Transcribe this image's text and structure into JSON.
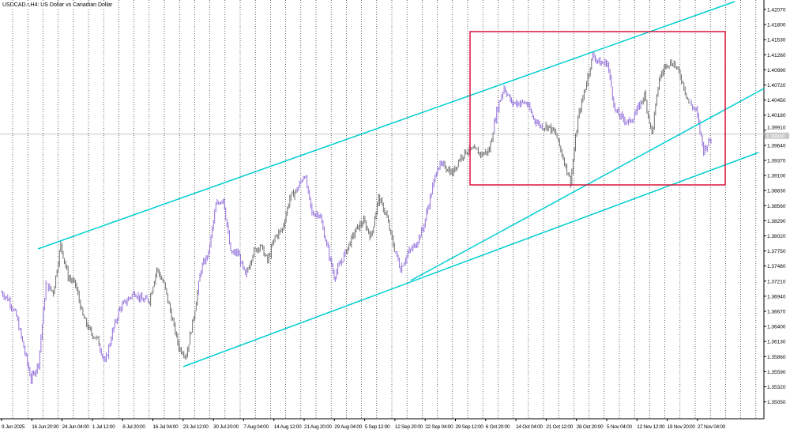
{
  "header": {
    "symbol": "USDCAD.r",
    "timeframe": "H4",
    "description": "US Dollar vs Canadian Dollar",
    "title": "USDCAD.r,H4:  US Dollar vs Canadian Dollar"
  },
  "chart_data": {
    "type": "candlestick",
    "title": "USDCAD.r,H4:  US Dollar vs Canadian Dollar",
    "y_ticks": [
      "1.42070",
      "1.41800",
      "1.41530",
      "1.41260",
      "1.40990",
      "1.40720",
      "1.40450",
      "1.40180",
      "1.39910",
      "1.39640",
      "1.39370",
      "1.39100",
      "1.38830",
      "1.38560",
      "1.38290",
      "1.38020",
      "1.37750",
      "1.37480",
      "1.37210",
      "1.36940",
      "1.36670",
      "1.36400",
      "1.36130",
      "1.35860",
      "1.35590",
      "1.35320",
      "1.35050"
    ],
    "ylim": [
      1.3487,
      1.4223
    ],
    "x_ticks": [
      "9 Jun 2025",
      "16 Jun 20:00",
      "24 Jun 04:00",
      "1 Jul 12:00",
      "8 Jul 20:00",
      "16 Jul 04:00",
      "23 Jul 12:00",
      "30 Jul 20:00",
      "7 Aug 04:00",
      "14 Aug 12:00",
      "21 Aug 20:00",
      "29 Aug 04:00",
      "5 Sep 12:00",
      "12 Sep 20:00",
      "22 Sep 04:00",
      "29 Sep 12:00",
      "6 Oct 20:00",
      "14 Oct 04:00",
      "21 Oct 12:00",
      "28 Oct 20:00",
      "5 Nov 04:00",
      "12 Nov 12:00",
      "19 Nov 20:00",
      "27 Nov 04:00"
    ],
    "current_price": "1.39840",
    "closes": [
      1.3701,
      1.3687,
      1.3658,
      1.3602,
      1.3545,
      1.3574,
      1.3715,
      1.3701,
      1.3786,
      1.3729,
      1.3715,
      1.3658,
      1.363,
      1.3616,
      1.3574,
      1.363,
      1.3672,
      1.3687,
      1.3701,
      1.3687,
      1.3687,
      1.3743,
      1.3715,
      1.3658,
      1.3602,
      1.3588,
      1.3658,
      1.3743,
      1.3771,
      1.3856,
      1.387,
      1.3771,
      1.3771,
      1.3729,
      1.3771,
      1.3786,
      1.3757,
      1.38,
      1.3814,
      1.387,
      1.3885,
      1.3913,
      1.3842,
      1.3842,
      1.3786,
      1.3729,
      1.3757,
      1.3786,
      1.3814,
      1.3828,
      1.38,
      1.387,
      1.3842,
      1.3786,
      1.3743,
      1.3771,
      1.3786,
      1.3814,
      1.387,
      1.3927,
      1.3927,
      1.3913,
      1.3941,
      1.3955,
      1.3955,
      1.3948,
      1.3955,
      1.4026,
      1.4068,
      1.404,
      1.404,
      1.404,
      1.4012,
      1.3998,
      1.3998,
      1.3984,
      1.3941,
      1.3899,
      1.4012,
      1.4068,
      1.4125,
      1.4111,
      1.4111,
      1.4026,
      1.4012,
      1.4005,
      1.4026,
      1.4054,
      1.3984,
      1.4083,
      1.4111,
      1.4111,
      1.4083,
      1.404,
      1.4026,
      1.3955,
      1.3977
    ],
    "trendlines": [
      {
        "from": [
          "16 Jun 20:00",
          1.38
        ],
        "to": [
          "end",
          1.4223
        ]
      },
      {
        "from": [
          "12 Sep 20:00",
          1.3729
        ],
        "to": [
          "end",
          1.407
        ]
      },
      {
        "from": [
          "23 Jul 12:00",
          1.3576
        ],
        "to": [
          "end",
          1.3955
        ]
      }
    ],
    "rectangle": {
      "from": [
        "29 Sep 12:00",
        1.4168
      ],
      "to": [
        "27 Nov 04:00",
        1.3896
      ]
    },
    "colors": {
      "bull": "#9370db",
      "bear": "#6e6e6e",
      "trendline": "#00ced1",
      "rectangle": "#dc143c",
      "grid": "#000000"
    },
    "grid": true
  }
}
